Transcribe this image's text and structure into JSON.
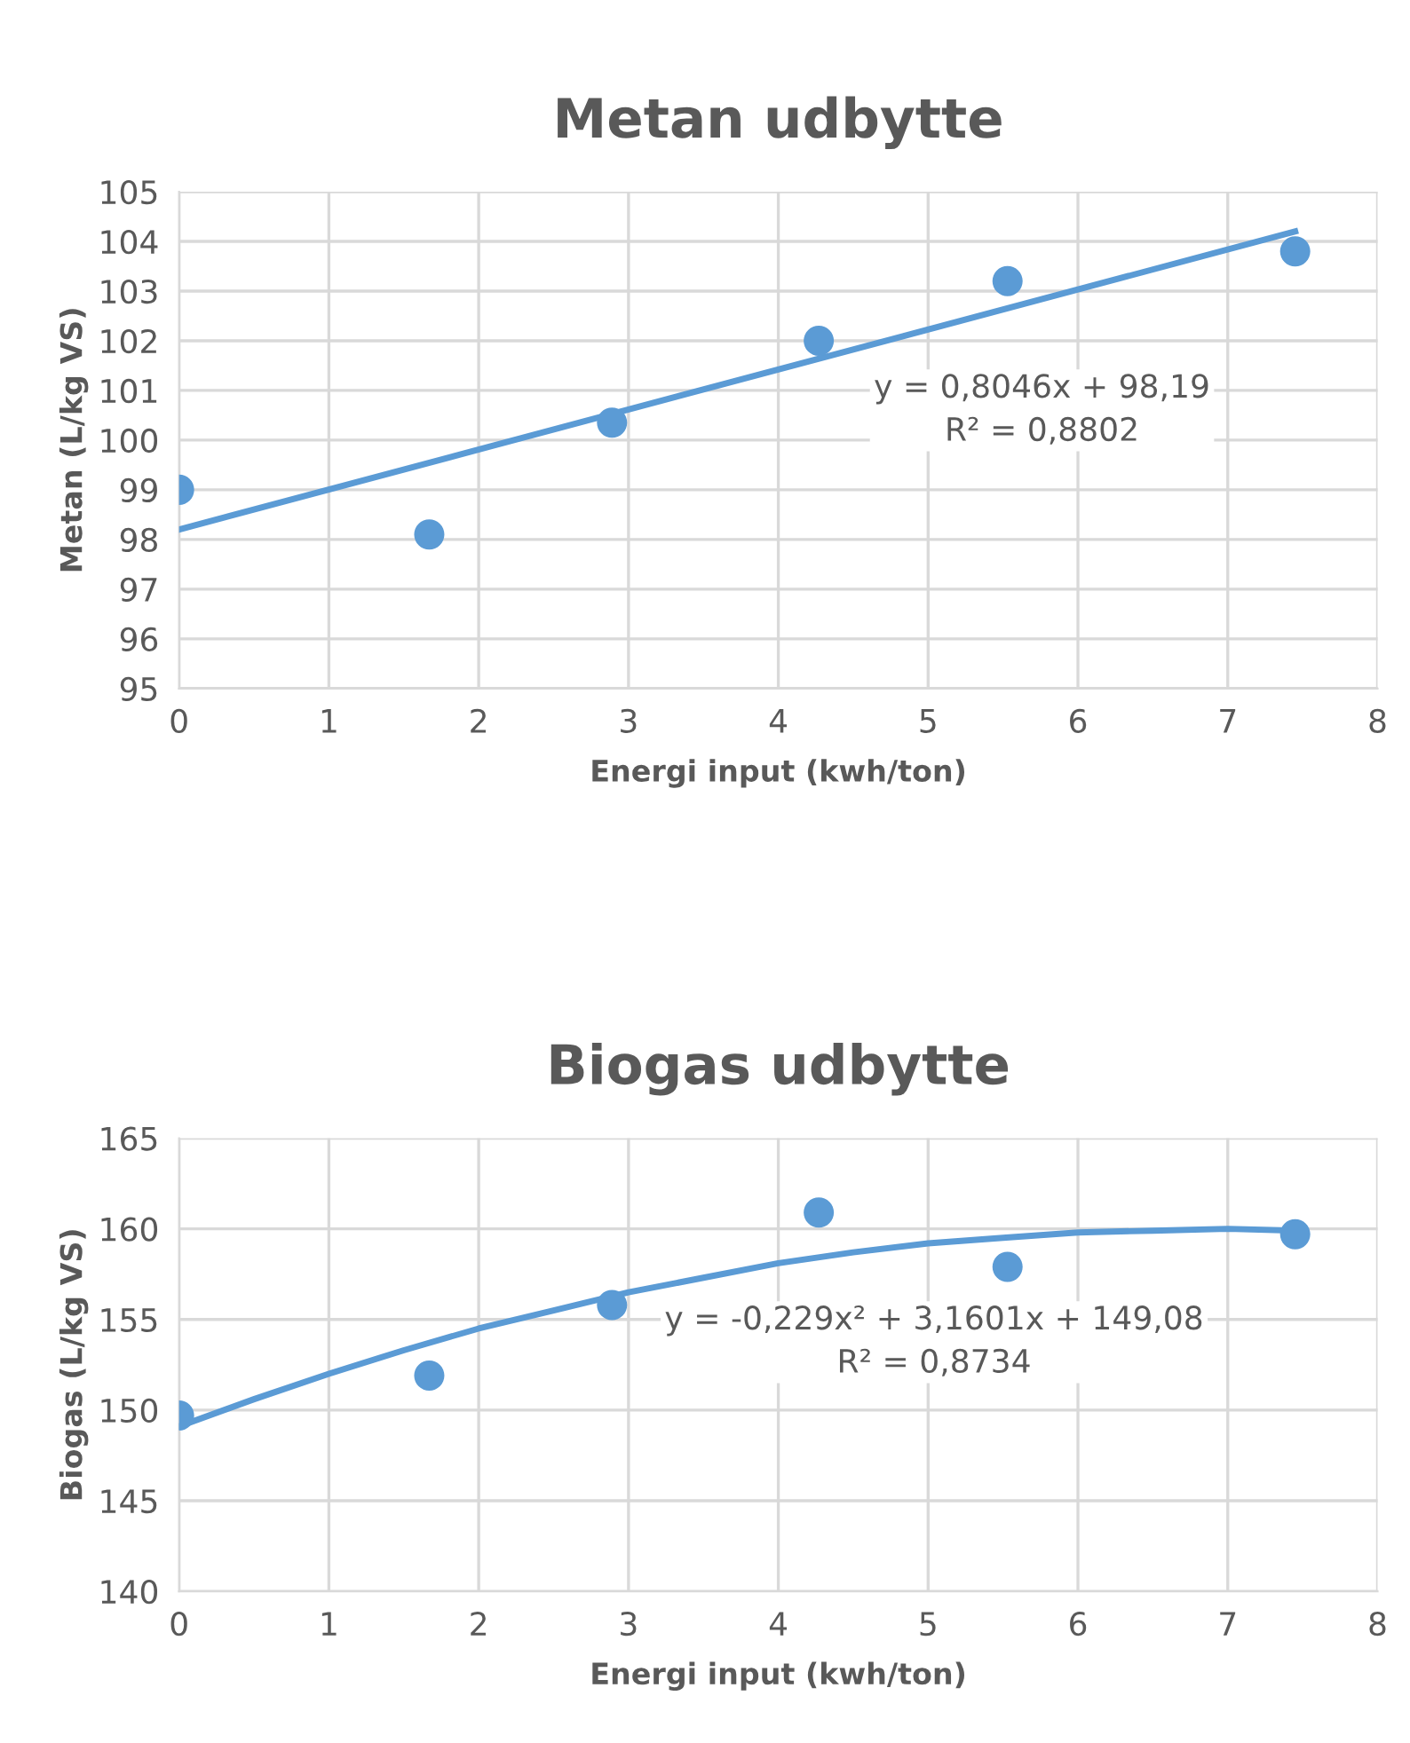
{
  "chart_data": [
    {
      "type": "scatter",
      "title": "Metan udbytte",
      "xlabel": "Energi input (kwh/ton)",
      "ylabel": "Metan (L/kg VS)",
      "xlim": [
        0,
        8
      ],
      "xticks": [
        0,
        1,
        2,
        3,
        4,
        5,
        6,
        7,
        8
      ],
      "ylim": [
        95,
        105
      ],
      "yticks": [
        95,
        96,
        97,
        98,
        99,
        100,
        101,
        102,
        103,
        104,
        105
      ],
      "grid": true,
      "series": [
        {
          "marker": "circle",
          "color": "#5b9bd5",
          "x": [
            0,
            1.67,
            2.89,
            4.27,
            5.53,
            7.45
          ],
          "values": [
            99.0,
            98.1,
            100.35,
            102.0,
            103.2,
            103.8
          ]
        },
        {
          "type": "line",
          "marker": "none",
          "color": "#5b9bd5",
          "x": [
            0,
            7.45
          ],
          "values": [
            98.2,
            104.2
          ]
        }
      ],
      "annotations": [
        "y = 0,8046x + 98,19",
        "R² = 0,8802"
      ]
    },
    {
      "type": "scatter",
      "title": "Biogas udbytte",
      "xlabel": "Energi input (kwh/ton)",
      "ylabel": "Biogas (L/kg VS)",
      "xlim": [
        0,
        8
      ],
      "xticks": [
        0,
        1,
        2,
        3,
        4,
        5,
        6,
        7,
        8
      ],
      "ylim": [
        140,
        165
      ],
      "yticks": [
        140,
        145,
        150,
        155,
        160,
        165
      ],
      "grid": true,
      "series": [
        {
          "marker": "circle",
          "color": "#5b9bd5",
          "x": [
            0,
            1.67,
            2.89,
            4.27,
            5.53,
            7.45
          ],
          "values": [
            149.7,
            151.9,
            155.8,
            160.9,
            157.9,
            159.7
          ]
        },
        {
          "type": "line",
          "marker": "none",
          "color": "#5b9bd5",
          "x": [
            0,
            0.5,
            1,
            1.5,
            2,
            2.5,
            3,
            3.5,
            4,
            4.5,
            5,
            5.5,
            6,
            6.5,
            7,
            7.45
          ],
          "values": [
            149.1,
            150.6,
            152.0,
            153.3,
            154.5,
            155.5,
            156.5,
            157.3,
            158.1,
            158.7,
            159.2,
            159.5,
            159.8,
            159.9,
            160.0,
            159.9
          ]
        }
      ],
      "annotations": [
        "y = -0,229x² + 3,1601x + 149,08",
        "R² = 0,8734"
      ]
    }
  ]
}
